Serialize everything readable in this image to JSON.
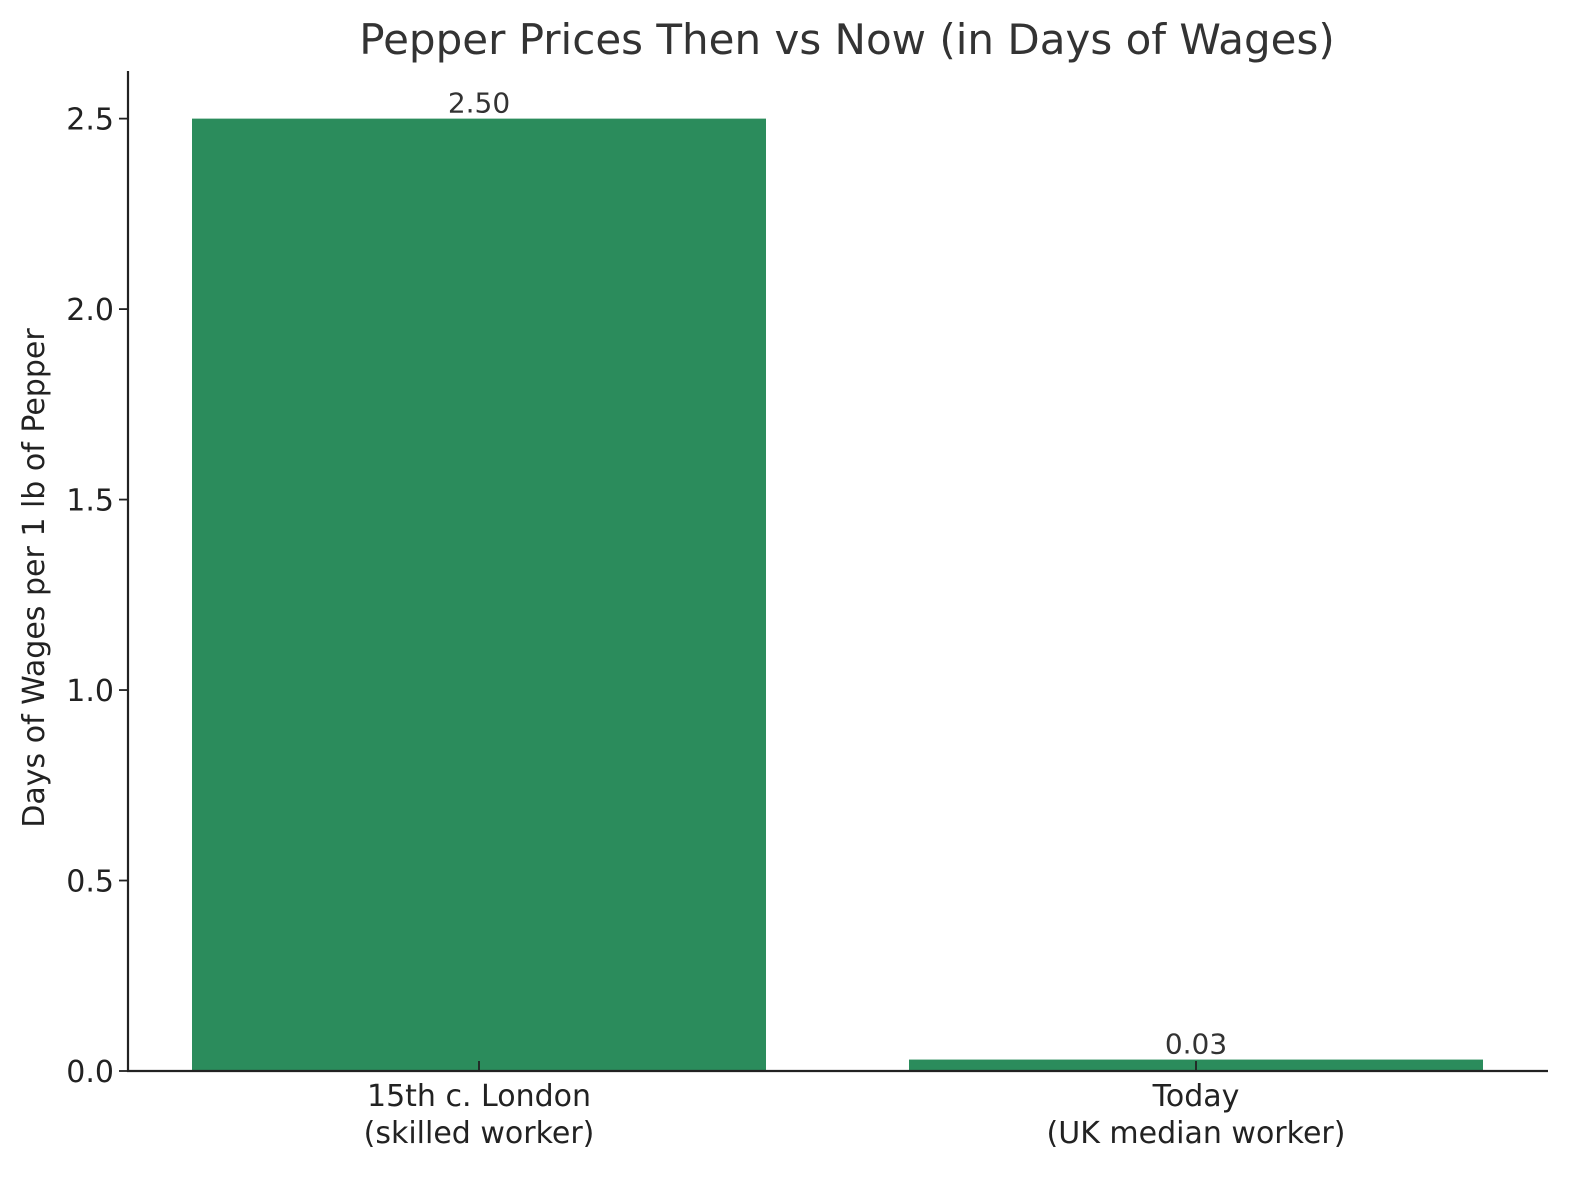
{
  "chart_data": {
    "type": "bar",
    "title": "Pepper Prices Then vs Now (in Days of Wages)",
    "xlabel": "",
    "ylabel": "Days of Wages per 1 lb of Pepper",
    "categories": [
      [
        "15th c. London",
        "(skilled worker)"
      ],
      [
        "Today",
        "(UK median worker)"
      ]
    ],
    "values": [
      2.5,
      0.03
    ],
    "data_labels": [
      "2.50",
      "0.03"
    ],
    "ylim": [
      0,
      2.625
    ],
    "yticks": [
      0.0,
      0.5,
      1.0,
      1.5,
      2.0,
      2.5
    ],
    "ytick_labels": [
      "0.0",
      "0.5",
      "1.0",
      "1.5",
      "2.0",
      "2.5"
    ],
    "grid": false,
    "legend": "none",
    "bar_color": "#2b8c5c",
    "axis_color": "#222222"
  }
}
